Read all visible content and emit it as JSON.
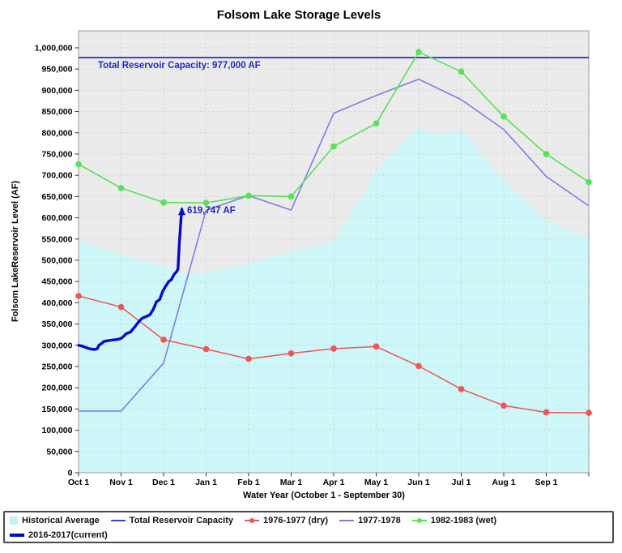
{
  "chart_data": {
    "type": "line",
    "title": "Folsom Lake Storage Levels",
    "xlabel": "Water Year (October 1 - September 30)",
    "ylabel": "Folsom LakeReservoir Level (AF)",
    "x_categories": [
      "Oct 1",
      "Nov 1",
      "Dec 1",
      "Jan 1",
      "Feb 1",
      "Mar 1",
      "Apr 1",
      "May 1",
      "Jun 1",
      "Jul 1",
      "Aug 1",
      "Sep 1"
    ],
    "ylim": [
      0,
      1040000
    ],
    "y_tick_step": 50000,
    "y_tick_labels": [
      "0",
      "50,000",
      "100,000",
      "150,000",
      "200,000",
      "250,000",
      "300,000",
      "350,000",
      "400,000",
      "450,000",
      "500,000",
      "550,000",
      "600,000",
      "650,000",
      "700,000",
      "750,000",
      "800,000",
      "850,000",
      "900,000",
      "950,000",
      "1,000,000"
    ],
    "grid": "dashed",
    "legend_position": "bottom",
    "capacity_af": 977000,
    "current_latest_af": 619747,
    "series": [
      {
        "name": "Historical Average",
        "type": "area",
        "color": "#cdf7f8",
        "points": [
          [
            0,
            545000
          ],
          [
            0.5,
            529000
          ],
          [
            1,
            514000
          ],
          [
            1.5,
            500000
          ],
          [
            2,
            487000
          ],
          [
            2.3,
            474000
          ],
          [
            2.55,
            466000
          ],
          [
            3,
            472000
          ],
          [
            3.5,
            481000
          ],
          [
            4,
            492000
          ],
          [
            4.5,
            506000
          ],
          [
            5,
            520000
          ],
          [
            5.5,
            532000
          ],
          [
            6,
            545000
          ],
          [
            6.5,
            624000
          ],
          [
            7,
            710000
          ],
          [
            7.5,
            764000
          ],
          [
            8,
            815000
          ],
          [
            8.25,
            801000
          ],
          [
            8.6,
            799000
          ],
          [
            9,
            806000
          ],
          [
            9.5,
            747000
          ],
          [
            10,
            690000
          ],
          [
            10.5,
            640000
          ],
          [
            11,
            596000
          ],
          [
            11.5,
            570000
          ],
          [
            12,
            551000
          ]
        ]
      },
      {
        "name": "Total Reservoir Capacity",
        "type": "hline",
        "color": "#4040d8",
        "value": 977000
      },
      {
        "name": "1976-1977 (dry)",
        "type": "line",
        "color": "#f05454",
        "marker": "circle",
        "values": [
          416000,
          390000,
          313000,
          291000,
          268000,
          281000,
          292000,
          297000,
          251000,
          197000,
          158000,
          142000,
          141000
        ]
      },
      {
        "name": "1977-1978",
        "type": "line",
        "color": "#7d7de6",
        "marker": "none",
        "values": [
          145000,
          145000,
          258000,
          618000,
          652000,
          618000,
          846000,
          888000,
          926000,
          878000,
          808000,
          697000,
          628000
        ]
      },
      {
        "name": "1982-1983 (wet)",
        "type": "line",
        "color": "#57e257",
        "marker": "circle",
        "values": [
          726000,
          670000,
          636000,
          635000,
          652000,
          650000,
          768000,
          822000,
          990000,
          944000,
          838000,
          750000,
          684000
        ]
      },
      {
        "name": "2016-2017(current)",
        "type": "line",
        "color": "#0707cf",
        "width": 3.4,
        "arrow_end": true,
        "points": [
          [
            0,
            300000
          ],
          [
            0.07,
            298500
          ],
          [
            0.14,
            296000
          ],
          [
            0.22,
            293000
          ],
          [
            0.3,
            291000
          ],
          [
            0.38,
            290000
          ],
          [
            0.44,
            292000
          ],
          [
            0.48,
            300000
          ],
          [
            0.54,
            304000
          ],
          [
            0.6,
            309000
          ],
          [
            0.7,
            311000
          ],
          [
            0.82,
            312500
          ],
          [
            0.93,
            314000
          ],
          [
            1.0,
            316000
          ],
          [
            1.05,
            320000
          ],
          [
            1.12,
            327000
          ],
          [
            1.22,
            331000
          ],
          [
            1.32,
            343000
          ],
          [
            1.42,
            356000
          ],
          [
            1.5,
            364000
          ],
          [
            1.6,
            368000
          ],
          [
            1.68,
            372000
          ],
          [
            1.76,
            385000
          ],
          [
            1.83,
            402000
          ],
          [
            1.91,
            408000
          ],
          [
            1.98,
            427000
          ],
          [
            2.05,
            439000
          ],
          [
            2.12,
            450000
          ],
          [
            2.18,
            454000
          ],
          [
            2.25,
            467000
          ],
          [
            2.31,
            474000
          ],
          [
            2.34,
            480000
          ],
          [
            2.37,
            540000
          ],
          [
            2.39,
            570000
          ],
          [
            2.41,
            598000
          ],
          [
            2.43,
            619747
          ]
        ]
      }
    ],
    "annotations": {
      "capacity": {
        "text": "Total Reservoir Capacity: 977,000 AF",
        "color": "#2424cc"
      },
      "current": {
        "text": "619,747 AF",
        "color": "#2424cc"
      }
    }
  },
  "legend": {
    "rows": [
      [
        {
          "label": "Historical Average",
          "swatch": "area",
          "color": "#bff0f2"
        },
        {
          "label": "Total Reservoir Capacity",
          "swatch": "line",
          "color": "#4040d8"
        },
        {
          "label": "1976-1977 (dry)",
          "swatch": "line-marker",
          "color": "#f05454"
        },
        {
          "label": "1977-1978",
          "swatch": "line",
          "color": "#7d7de6"
        },
        {
          "label": "1982-1983 (wet)",
          "swatch": "line-marker",
          "color": "#57e257"
        }
      ],
      [
        {
          "label": "2016-2017(current)",
          "swatch": "thick-line",
          "color": "#0707cf"
        }
      ]
    ]
  }
}
